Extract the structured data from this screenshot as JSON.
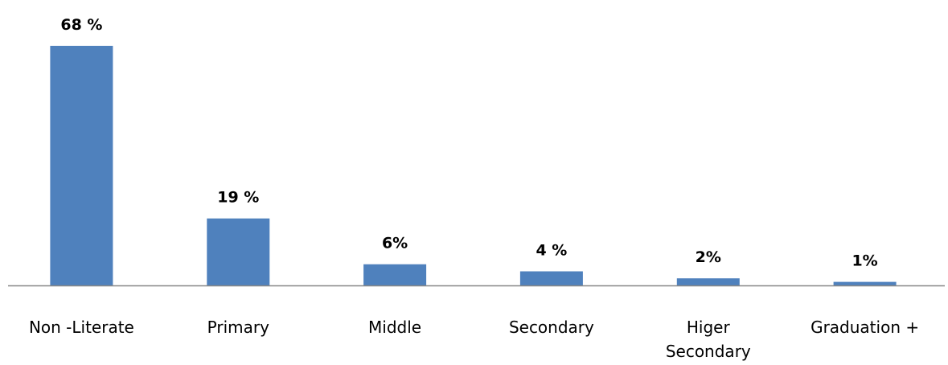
{
  "colors": {
    "bar": "#4f81bd",
    "axis": "#888888"
  },
  "chart_data": {
    "type": "bar",
    "categories": [
      "Non -Literate",
      "Primary",
      "Middle",
      "Secondary",
      "Higer Secondary",
      "Graduation +"
    ],
    "category_lines": [
      [
        "Non -Literate"
      ],
      [
        "Primary"
      ],
      [
        "Middle"
      ],
      [
        "Secondary"
      ],
      [
        "Higer",
        "Secondary"
      ],
      [
        "Graduation +"
      ]
    ],
    "values": [
      68,
      19,
      6,
      4,
      2,
      1
    ],
    "data_labels": [
      "68 %",
      "19 %",
      "6%",
      "4 %",
      "2%",
      "1%"
    ],
    "title": "",
    "xlabel": "",
    "ylabel": "",
    "ylim": [
      0,
      68
    ],
    "grid": false,
    "legend": "none"
  }
}
